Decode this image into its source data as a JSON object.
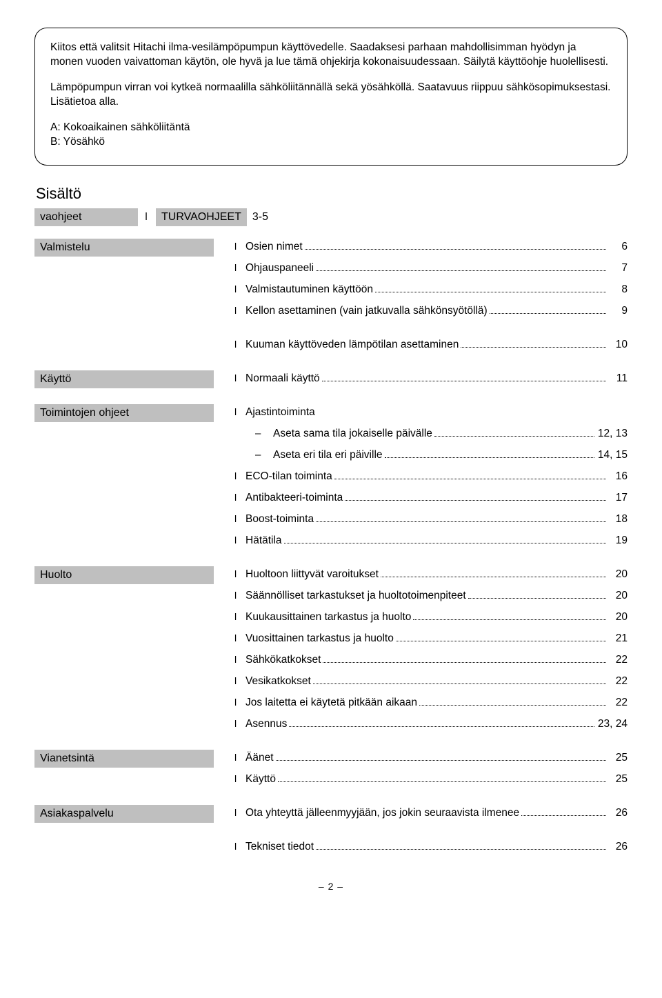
{
  "intro": {
    "p1": "Kiitos että valitsit Hitachi ilma-vesilämpöpumpun käyttövedelle. Saadaksesi parhaan mahdollisimman hyödyn ja monen vuoden vaivattoman käytön, ole hyvä ja lue tämä ohjekirja kokonaisuudessaan. Säilytä käyttöohje huolellisesti.",
    "p2": "Lämpöpumpun virran voi kytkeä normaalilla sähköliitännällä sekä yösähköllä. Saatavuus riippuu sähkösopimuksestasi. Lisätietoa alla.",
    "a": "A: Kokoaikainen sähköliitäntä",
    "b": "B: Yösähkö"
  },
  "contents_title": "Sisältö",
  "row1": {
    "left": "vaohjeet",
    "right": "TURVAOHJEET",
    "pages": "3-5"
  },
  "sections": {
    "valmistelu": {
      "label": "Valmistelu",
      "items": [
        {
          "text": "Osien nimet",
          "page": "6"
        },
        {
          "text": "Ohjauspaneeli",
          "page": "7"
        },
        {
          "text": "Valmistautuminen käyttöön",
          "page": "8"
        },
        {
          "text": "Kellon asettaminen (vain jatkuvalla sähkönsyötöllä)",
          "page": "9"
        }
      ],
      "extra": [
        {
          "text": "Kuuman käyttöveden lämpötilan asettaminen",
          "page": "10"
        }
      ]
    },
    "kaytto": {
      "label": "Käyttö",
      "items": [
        {
          "text": "Normaali käyttö",
          "page": "11"
        }
      ]
    },
    "toimintojen": {
      "label": "Toimintojen ohjeet",
      "header": {
        "text": "Ajastintoiminta"
      },
      "subs": [
        {
          "text": "Aseta sama tila jokaiselle päivälle",
          "page": "12, 13"
        },
        {
          "text": "Aseta eri tila eri päiville",
          "page": "14, 15"
        }
      ],
      "items": [
        {
          "text": "ECO-tilan toiminta",
          "page": "16"
        },
        {
          "text": "Antibakteeri-toiminta",
          "page": "17"
        },
        {
          "text": "Boost-toiminta",
          "page": "18"
        },
        {
          "text": "Hätätila",
          "page": "19"
        }
      ]
    },
    "huolto": {
      "label": "Huolto",
      "items": [
        {
          "text": "Huoltoon liittyvät varoitukset",
          "page": "20"
        },
        {
          "text": "Säännölliset tarkastukset ja huoltotoimenpiteet",
          "page": "20"
        },
        {
          "text": "Kuukausittainen tarkastus ja huolto",
          "page": "20"
        },
        {
          "text": "Vuosittainen tarkastus ja huolto",
          "page": "21"
        },
        {
          "text": "Sähkökatkokset",
          "page": "22"
        },
        {
          "text": "Vesikatkokset",
          "page": "22"
        },
        {
          "text": "Jos laitetta ei käytetä pitkään aikaan",
          "page": "22"
        },
        {
          "text": "Asennus",
          "page": "23, 24"
        }
      ]
    },
    "vianetsinta": {
      "label": "Vianetsintä",
      "items": [
        {
          "text": "Äänet",
          "page": "25"
        },
        {
          "text": "Käyttö",
          "page": "25"
        }
      ]
    },
    "asiakaspalvelu": {
      "label": "Asiakaspalvelu",
      "items": [
        {
          "text": "Ota yhteyttä jälleenmyyjään, jos jokin seuraavista ilmenee",
          "page": "26"
        }
      ],
      "extra": [
        {
          "text": "Tekniset tiedot",
          "page": "26"
        }
      ]
    }
  },
  "footer": "– 2 –"
}
